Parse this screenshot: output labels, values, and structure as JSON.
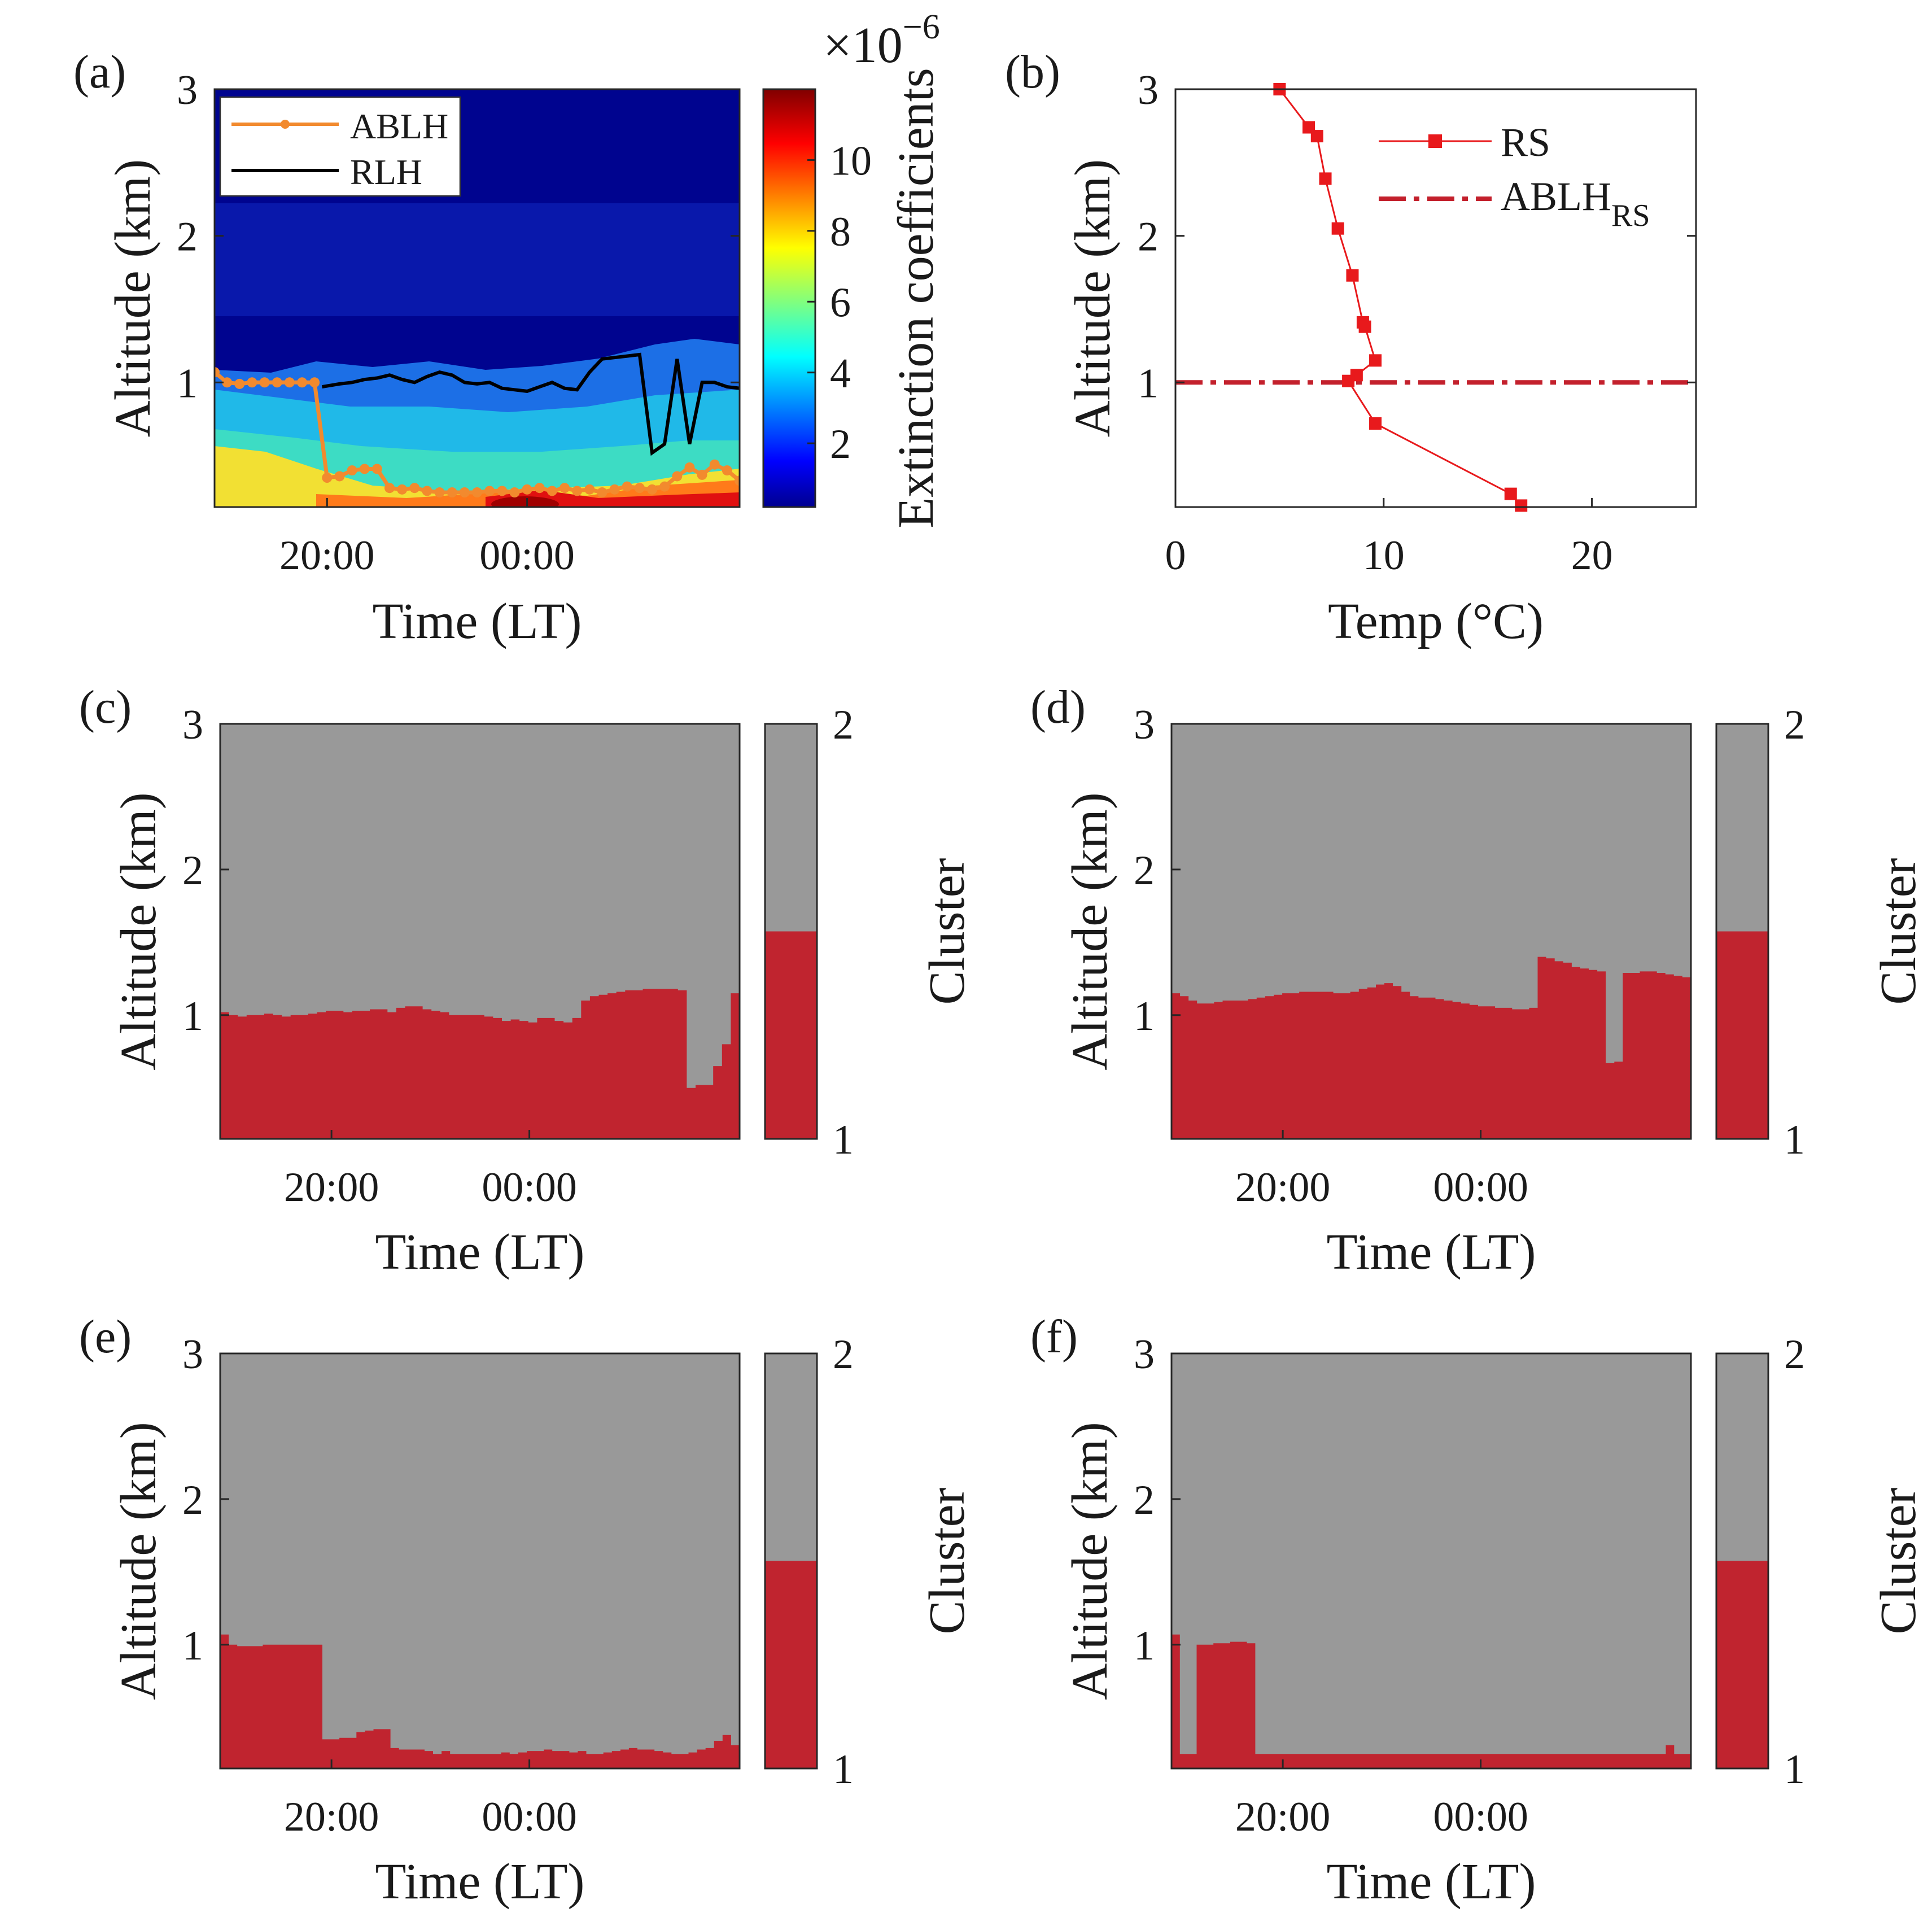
{
  "colors": {
    "ablh": "#f28a2e",
    "rlh": "#000000",
    "rs": "#e8191c",
    "ablh_rs": "#c3202c",
    "cluster_low": "#c0242f",
    "cluster_high": "#999999"
  },
  "chart_data": [
    {
      "id": "a",
      "type": "heatmap",
      "panel_label": "(a)",
      "xlabel": "Time (LT)",
      "ylabel": "Altitude (km)",
      "x_tick_labels": [
        "20:00",
        "00:00"
      ],
      "y_ticks": [
        1,
        2,
        3
      ],
      "xlim_hours": [
        17.75,
        28.25
      ],
      "ylim": [
        0.15,
        3
      ],
      "colorbar": {
        "label": "Extinction coefficients",
        "exponent_label": "×10",
        "exponent_power": "−6",
        "ticks": [
          2,
          4,
          6,
          8,
          10
        ],
        "range": [
          0.2,
          12
        ],
        "colormap": "jet"
      },
      "legend": {
        "position": "top-left",
        "entries": [
          "ABLH",
          "RLH"
        ]
      },
      "series": [
        {
          "name": "ABLH",
          "x_hours": [
            17.75,
            18,
            18.25,
            18.5,
            18.75,
            19,
            19.25,
            19.5,
            19.75,
            20,
            20.25,
            20.5,
            20.75,
            21,
            21.25,
            21.5,
            21.75,
            22,
            22.25,
            22.5,
            22.75,
            23,
            23.25,
            23.5,
            23.75,
            24,
            24.25,
            24.5,
            24.75,
            25,
            25.25,
            25.5,
            25.75,
            26,
            26.25,
            26.5,
            26.75,
            27,
            27.25,
            27.5,
            27.75,
            28,
            28.25
          ],
          "y_km": [
            1.07,
            1.0,
            0.99,
            1.0,
            1.0,
            1.0,
            1.0,
            1.0,
            1.0,
            0.35,
            0.36,
            0.4,
            0.41,
            0.41,
            0.28,
            0.27,
            0.28,
            0.26,
            0.25,
            0.25,
            0.25,
            0.25,
            0.26,
            0.26,
            0.25,
            0.27,
            0.28,
            0.26,
            0.28,
            0.26,
            0.27,
            0.25,
            0.27,
            0.29,
            0.28,
            0.27,
            0.29,
            0.36,
            0.42,
            0.37,
            0.44,
            0.4,
            0.33
          ]
        },
        {
          "name": "RLH",
          "x_hours": [
            19.9,
            20.25,
            20.5,
            20.75,
            21,
            21.25,
            21.5,
            21.75,
            22,
            22.25,
            22.5,
            22.75,
            23,
            23.25,
            23.5,
            23.75,
            24,
            24.25,
            24.5,
            24.75,
            25,
            25.25,
            25.5,
            25.75,
            26,
            26.25,
            26.5,
            26.75,
            27,
            27.25,
            27.5,
            27.75,
            28,
            28.25
          ],
          "y_km": [
            0.97,
            0.99,
            1.0,
            1.02,
            1.03,
            1.05,
            1.02,
            1.0,
            1.04,
            1.07,
            1.05,
            1.0,
            0.99,
            1.0,
            0.96,
            0.95,
            0.94,
            0.97,
            1.0,
            0.96,
            0.95,
            1.07,
            1.16,
            1.17,
            1.18,
            1.19,
            0.52,
            0.58,
            1.16,
            0.58,
            1.0,
            1.0,
            0.97,
            0.96
          ]
        }
      ]
    },
    {
      "id": "b",
      "type": "line",
      "panel_label": "(b)",
      "xlabel": "Temp (°C)",
      "ylabel": "Altitude (km)",
      "xlim": [
        0,
        25
      ],
      "ylim": [
        0.15,
        3
      ],
      "x_ticks": [
        0,
        10,
        20
      ],
      "y_ticks": [
        1,
        2,
        3
      ],
      "legend": {
        "position": "top-right",
        "entries": [
          "RS",
          "ABLH",
          "RS"
        ]
      },
      "series": [
        {
          "name": "RS",
          "x": [
            5.0,
            6.4,
            6.8,
            7.2,
            7.8,
            8.5,
            9.0,
            9.1,
            9.6,
            8.7,
            8.3,
            9.6,
            16.1,
            16.6
          ],
          "y": [
            3.0,
            2.74,
            2.68,
            2.39,
            2.05,
            1.73,
            1.41,
            1.38,
            1.15,
            1.05,
            1.01,
            0.72,
            0.24,
            0.16
          ]
        },
        {
          "name": "ABLH_RS",
          "y_value": 1.0
        }
      ]
    },
    {
      "id": "c",
      "type": "heatmap",
      "panel_label": "(c)",
      "xlabel": "Time (LT)",
      "ylabel": "Altitude (km)",
      "x_tick_labels": [
        "20:00",
        "00:00"
      ],
      "y_ticks": [
        1,
        2,
        3
      ],
      "xlim_hours": [
        17.75,
        28.25
      ],
      "ylim": [
        0.15,
        3
      ],
      "colorbar": {
        "label": "Cluster",
        "ticks": [
          1,
          2
        ]
      },
      "boundary_km": [
        1.02,
        1.0,
        0.99,
        1.0,
        1.0,
        1.01,
        1.0,
        0.99,
        1.0,
        1.0,
        1.01,
        1.02,
        1.03,
        1.03,
        1.02,
        1.03,
        1.03,
        1.04,
        1.04,
        1.02,
        1.05,
        1.06,
        1.06,
        1.04,
        1.03,
        1.02,
        1.0,
        1.0,
        1.0,
        1.0,
        0.99,
        0.98,
        0.96,
        0.97,
        0.96,
        0.95,
        0.98,
        0.98,
        0.96,
        0.95,
        0.98,
        1.1,
        1.13,
        1.14,
        1.15,
        1.16,
        1.17,
        1.17,
        1.18,
        1.18,
        1.18,
        1.18,
        1.17,
        0.5,
        0.52,
        0.52,
        0.65,
        0.8,
        1.15
      ]
    },
    {
      "id": "d",
      "type": "heatmap",
      "panel_label": "(d)",
      "xlabel": "Time (LT)",
      "ylabel": "Altitude (km)",
      "x_tick_labels": [
        "20:00",
        "00:00"
      ],
      "y_ticks": [
        1,
        2,
        3
      ],
      "xlim_hours": [
        17.75,
        28.25
      ],
      "ylim": [
        0.15,
        3
      ],
      "colorbar": {
        "label": "Cluster",
        "ticks": [
          1,
          2
        ]
      },
      "boundary_km": [
        1.15,
        1.13,
        1.1,
        1.08,
        1.08,
        1.09,
        1.1,
        1.1,
        1.1,
        1.11,
        1.12,
        1.13,
        1.14,
        1.15,
        1.15,
        1.16,
        1.16,
        1.16,
        1.16,
        1.15,
        1.15,
        1.16,
        1.18,
        1.19,
        1.21,
        1.22,
        1.2,
        1.16,
        1.13,
        1.12,
        1.12,
        1.11,
        1.1,
        1.09,
        1.08,
        1.07,
        1.06,
        1.06,
        1.05,
        1.05,
        1.04,
        1.04,
        1.05,
        1.4,
        1.39,
        1.37,
        1.36,
        1.33,
        1.32,
        1.31,
        1.3,
        0.67,
        0.68,
        1.29,
        1.29,
        1.3,
        1.3,
        1.29,
        1.28,
        1.27,
        1.26
      ]
    },
    {
      "id": "e",
      "type": "heatmap",
      "panel_label": "(e)",
      "xlabel": "Time (LT)",
      "ylabel": "Altitude (km)",
      "x_tick_labels": [
        "20:00",
        "00:00"
      ],
      "y_ticks": [
        1,
        2,
        3
      ],
      "xlim_hours": [
        17.75,
        28.25
      ],
      "ylim": [
        0.15,
        3
      ],
      "colorbar": {
        "label": "Cluster",
        "ticks": [
          1,
          2
        ]
      },
      "boundary_km": [
        1.07,
        1.0,
        0.99,
        0.99,
        0.99,
        1.0,
        1.0,
        1.0,
        1.0,
        1.0,
        1.0,
        1.0,
        0.35,
        0.35,
        0.36,
        0.36,
        0.4,
        0.41,
        0.42,
        0.42,
        0.29,
        0.28,
        0.28,
        0.28,
        0.27,
        0.25,
        0.27,
        0.25,
        0.25,
        0.25,
        0.25,
        0.25,
        0.25,
        0.26,
        0.25,
        0.26,
        0.27,
        0.27,
        0.28,
        0.27,
        0.27,
        0.26,
        0.27,
        0.25,
        0.25,
        0.26,
        0.27,
        0.28,
        0.29,
        0.28,
        0.28,
        0.27,
        0.26,
        0.25,
        0.25,
        0.26,
        0.28,
        0.29,
        0.34,
        0.38,
        0.31
      ]
    },
    {
      "id": "f",
      "type": "heatmap",
      "panel_label": "(f)",
      "xlabel": "Time (LT)",
      "ylabel": "Altitude (km)",
      "x_tick_labels": [
        "20:00",
        "00:00"
      ],
      "y_ticks": [
        1,
        2,
        3
      ],
      "xlim_hours": [
        17.75,
        28.25
      ],
      "ylim": [
        0.15,
        3
      ],
      "colorbar": {
        "label": "Cluster",
        "ticks": [
          1,
          2
        ]
      },
      "boundary_km": [
        1.07,
        0.25,
        0.25,
        1.0,
        1.0,
        1.01,
        1.01,
        1.02,
        1.02,
        1.01,
        0.25,
        0.25,
        0.25,
        0.25,
        0.25,
        0.25,
        0.25,
        0.25,
        0.25,
        0.25,
        0.25,
        0.25,
        0.25,
        0.25,
        0.25,
        0.25,
        0.25,
        0.25,
        0.25,
        0.25,
        0.25,
        0.25,
        0.25,
        0.25,
        0.25,
        0.25,
        0.25,
        0.25,
        0.25,
        0.25,
        0.25,
        0.25,
        0.25,
        0.25,
        0.25,
        0.25,
        0.25,
        0.25,
        0.25,
        0.25,
        0.25,
        0.25,
        0.25,
        0.25,
        0.25,
        0.25,
        0.25,
        0.25,
        0.25,
        0.31,
        0.25,
        0.25
      ]
    }
  ]
}
